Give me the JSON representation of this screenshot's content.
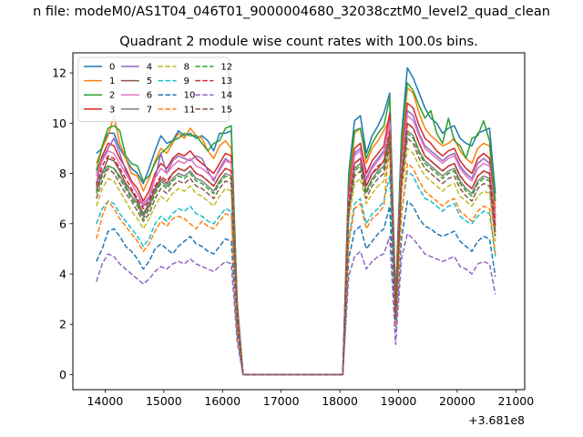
{
  "chart_data": {
    "type": "line",
    "suptitle": "n file: modeM0/AS1T04_046T01_9000004680_32038cztM0_level2_quad_clean",
    "title": "Quadrant 2 module wise count rates with 100.0s bins.",
    "xlabel": "",
    "ylabel": "",
    "x_offset_label": "+3.681e8",
    "xlim": [
      13450,
      21150
    ],
    "ylim": [
      -0.6,
      12.8
    ],
    "xticks": [
      14000,
      15000,
      16000,
      17000,
      18000,
      19000,
      20000,
      21000
    ],
    "yticks": [
      0,
      2,
      4,
      6,
      8,
      10,
      12
    ],
    "grid": false,
    "legend": {
      "position": "top-left",
      "columns": 4
    },
    "x": [
      13850,
      13950,
      14050,
      14150,
      14250,
      14350,
      14450,
      14550,
      14650,
      14750,
      14850,
      14950,
      15050,
      15150,
      15250,
      15350,
      15450,
      15550,
      15650,
      15750,
      15850,
      15950,
      16050,
      16150,
      16250,
      16350,
      16450,
      16550,
      16650,
      16750,
      16850,
      16950,
      17050,
      17150,
      17250,
      17350,
      17450,
      17550,
      17650,
      17750,
      17850,
      17950,
      18050,
      18150,
      18250,
      18350,
      18450,
      18550,
      18650,
      18750,
      18850,
      18950,
      19050,
      19150,
      19250,
      19350,
      19450,
      19550,
      19650,
      19750,
      19850,
      19950,
      20050,
      20150,
      20250,
      20350,
      20450,
      20550,
      20650
    ],
    "series": [
      {
        "name": "0",
        "color": "#1f77b4",
        "dash": false,
        "values": [
          8.8,
          9.0,
          9.6,
          9.6,
          9.0,
          8.6,
          8.2,
          8.0,
          7.6,
          8.2,
          8.9,
          9.5,
          9.2,
          9.3,
          9.7,
          9.5,
          9.6,
          9.4,
          9.5,
          9.3,
          8.9,
          9.6,
          9.6,
          9.7,
          2.9,
          0,
          0,
          0,
          0,
          0,
          0,
          0,
          0,
          0,
          0,
          0,
          0,
          0,
          0,
          0,
          0,
          0,
          0,
          8.0,
          10.1,
          10.3,
          8.8,
          9.5,
          9.9,
          10.4,
          11.2,
          3.0,
          9.5,
          12.2,
          11.8,
          11.2,
          10.6,
          10.2,
          10.0,
          9.6,
          9.8,
          9.9,
          9.4,
          9.2,
          9.1,
          9.6,
          9.7,
          9.8,
          7.2
        ]
      },
      {
        "name": "1",
        "color": "#ff7f0e",
        "dash": false,
        "values": [
          8.4,
          9.0,
          9.5,
          10.3,
          9.2,
          8.6,
          8.0,
          7.9,
          7.3,
          7.8,
          8.5,
          9.0,
          8.8,
          9.2,
          9.6,
          9.4,
          9.8,
          9.5,
          9.4,
          8.9,
          8.6,
          9.1,
          9.3,
          9.0,
          2.7,
          0,
          0,
          0,
          0,
          0,
          0,
          0,
          0,
          0,
          0,
          0,
          0,
          0,
          0,
          0,
          0,
          0,
          0,
          7.4,
          9.6,
          9.8,
          8.4,
          9.0,
          9.3,
          9.7,
          10.2,
          2.7,
          9.0,
          11.4,
          11.2,
          10.4,
          9.8,
          9.5,
          9.3,
          9.1,
          9.2,
          9.4,
          8.9,
          8.6,
          8.4,
          9.0,
          9.2,
          9.1,
          6.6
        ]
      },
      {
        "name": "2",
        "color": "#2ca02c",
        "dash": false,
        "values": [
          8.1,
          9.1,
          9.8,
          9.9,
          9.7,
          8.7,
          8.4,
          8.3,
          7.7,
          7.9,
          8.4,
          8.8,
          9.0,
          9.3,
          9.4,
          9.6,
          9.5,
          9.5,
          9.2,
          8.9,
          9.2,
          9.3,
          9.8,
          9.9,
          2.8,
          0,
          0,
          0,
          0,
          0,
          0,
          0,
          0,
          0,
          0,
          0,
          0,
          0,
          0,
          0,
          0,
          0,
          0,
          7.8,
          9.7,
          9.8,
          8.6,
          9.2,
          9.6,
          9.9,
          11.0,
          2.9,
          9.3,
          11.6,
          11.3,
          10.7,
          10.2,
          10.5,
          9.6,
          9.2,
          10.2,
          9.3,
          9.1,
          8.6,
          9.4,
          9.5,
          10.1,
          9.3,
          6.9
        ]
      },
      {
        "name": "3",
        "color": "#d62728",
        "dash": false,
        "values": [
          7.9,
          8.7,
          9.2,
          9.1,
          8.6,
          8.2,
          7.7,
          7.4,
          6.9,
          7.3,
          8.0,
          8.4,
          8.2,
          8.6,
          8.8,
          8.7,
          8.9,
          8.6,
          8.4,
          8.2,
          8.0,
          8.4,
          8.8,
          8.7,
          2.6,
          0,
          0,
          0,
          0,
          0,
          0,
          0,
          0,
          0,
          0,
          0,
          0,
          0,
          0,
          0,
          0,
          0,
          0,
          7.2,
          9.0,
          9.2,
          8.0,
          8.5,
          8.8,
          9.1,
          10.4,
          2.6,
          8.6,
          10.8,
          10.6,
          9.9,
          9.4,
          9.2,
          8.9,
          8.7,
          8.9,
          9.0,
          8.5,
          8.2,
          8.0,
          8.6,
          8.8,
          8.6,
          6.3
        ]
      },
      {
        "name": "4",
        "color": "#9467bd",
        "dash": false,
        "values": [
          7.6,
          8.6,
          9.0,
          9.4,
          8.8,
          8.1,
          7.6,
          7.2,
          6.7,
          7.0,
          7.8,
          8.8,
          8.0,
          8.5,
          8.7,
          8.6,
          8.5,
          8.7,
          8.6,
          8.1,
          7.7,
          8.2,
          8.6,
          8.4,
          2.5,
          0,
          0,
          0,
          0,
          0,
          0,
          0,
          0,
          0,
          0,
          0,
          0,
          0,
          0,
          0,
          0,
          0,
          0,
          7.0,
          8.8,
          9.0,
          7.8,
          8.3,
          8.6,
          8.9,
          10.1,
          2.5,
          8.4,
          10.5,
          10.3,
          9.6,
          9.1,
          8.9,
          8.7,
          8.5,
          8.7,
          8.8,
          8.3,
          8.0,
          7.8,
          8.4,
          8.6,
          8.4,
          6.2
        ]
      },
      {
        "name": "5",
        "color": "#8c564b",
        "dash": false,
        "values": [
          7.3,
          8.0,
          8.6,
          8.5,
          8.1,
          7.6,
          7.3,
          6.9,
          6.4,
          6.8,
          7.4,
          7.8,
          7.6,
          8.0,
          8.2,
          8.1,
          8.3,
          8.0,
          7.9,
          7.7,
          7.5,
          7.9,
          8.2,
          8.1,
          2.4,
          0,
          0,
          0,
          0,
          0,
          0,
          0,
          0,
          0,
          0,
          0,
          0,
          0,
          0,
          0,
          0,
          0,
          0,
          6.7,
          8.4,
          8.6,
          7.5,
          8.0,
          8.2,
          8.5,
          9.6,
          2.4,
          8.0,
          10.0,
          9.8,
          9.2,
          8.7,
          8.5,
          8.3,
          8.1,
          8.3,
          8.4,
          7.9,
          7.6,
          7.4,
          7.9,
          8.1,
          8.0,
          5.9
        ]
      },
      {
        "name": "6",
        "color": "#e377c2",
        "dash": false,
        "values": [
          7.9,
          8.5,
          8.9,
          8.8,
          8.4,
          8.0,
          7.6,
          7.2,
          6.8,
          7.1,
          7.8,
          8.2,
          8.0,
          8.3,
          8.5,
          8.4,
          8.6,
          8.3,
          8.2,
          8.0,
          7.8,
          8.1,
          8.5,
          8.4,
          2.5,
          0,
          0,
          0,
          0,
          0,
          0,
          0,
          0,
          0,
          0,
          0,
          0,
          0,
          0,
          0,
          0,
          0,
          0,
          6.9,
          8.7,
          8.9,
          7.7,
          8.2,
          8.5,
          8.8,
          10.0,
          2.5,
          8.3,
          10.3,
          10.1,
          9.5,
          9.0,
          8.8,
          8.6,
          8.4,
          8.6,
          8.7,
          8.2,
          7.9,
          7.7,
          8.2,
          8.4,
          8.3,
          6.1
        ]
      },
      {
        "name": "7",
        "color": "#7f7f7f",
        "dash": false,
        "values": [
          7.4,
          8.1,
          8.3,
          8.2,
          7.9,
          7.5,
          7.1,
          6.8,
          6.3,
          6.7,
          7.3,
          7.7,
          7.5,
          7.8,
          8.0,
          7.9,
          8.1,
          7.8,
          7.7,
          7.5,
          7.3,
          7.7,
          8.0,
          7.9,
          2.3,
          0,
          0,
          0,
          0,
          0,
          0,
          0,
          0,
          0,
          0,
          0,
          0,
          0,
          0,
          0,
          0,
          0,
          0,
          6.6,
          8.2,
          8.4,
          7.3,
          7.8,
          8.1,
          8.3,
          9.4,
          2.3,
          7.8,
          9.7,
          9.5,
          8.9,
          8.5,
          8.3,
          8.1,
          7.9,
          8.1,
          8.2,
          7.7,
          7.4,
          7.2,
          7.7,
          7.9,
          7.8,
          5.7
        ]
      },
      {
        "name": "8",
        "color": "#bcbd22",
        "dash": true,
        "values": [
          6.7,
          7.4,
          7.8,
          7.7,
          7.3,
          6.9,
          6.5,
          6.2,
          5.8,
          6.2,
          6.7,
          7.1,
          6.9,
          7.2,
          7.4,
          7.3,
          7.5,
          7.2,
          7.1,
          6.9,
          6.7,
          7.1,
          7.4,
          7.3,
          2.2,
          0,
          0,
          0,
          0,
          0,
          0,
          0,
          0,
          0,
          0,
          0,
          0,
          0,
          0,
          0,
          0,
          0,
          0,
          6.1,
          7.6,
          7.8,
          6.8,
          7.2,
          7.5,
          7.7,
          8.8,
          2.2,
          7.2,
          9.0,
          8.8,
          8.3,
          7.9,
          7.7,
          7.5,
          7.3,
          7.5,
          7.6,
          7.1,
          6.9,
          6.7,
          7.1,
          7.3,
          7.2,
          5.3
        ]
      },
      {
        "name": "9",
        "color": "#17becf",
        "dash": true,
        "values": [
          6.0,
          6.6,
          6.9,
          6.8,
          6.4,
          6.1,
          5.8,
          5.5,
          5.1,
          5.4,
          6.0,
          6.3,
          6.1,
          6.4,
          6.6,
          6.5,
          6.7,
          6.4,
          6.3,
          6.1,
          6.0,
          6.3,
          6.6,
          6.5,
          1.9,
          0,
          0,
          0,
          0,
          0,
          0,
          0,
          0,
          0,
          0,
          0,
          0,
          0,
          0,
          0,
          0,
          0,
          0,
          5.4,
          6.8,
          7.0,
          6.0,
          6.4,
          6.6,
          6.9,
          7.9,
          2.0,
          6.4,
          8.1,
          7.9,
          7.4,
          7.0,
          6.9,
          6.7,
          6.5,
          6.7,
          6.8,
          6.3,
          6.1,
          6.0,
          6.3,
          6.5,
          6.4,
          4.7
        ]
      },
      {
        "name": "10",
        "color": "#1f77b4",
        "dash": true,
        "values": [
          4.5,
          5.0,
          5.7,
          5.8,
          5.5,
          5.1,
          4.9,
          4.6,
          4.2,
          4.5,
          5.0,
          5.2,
          5.0,
          4.8,
          5.1,
          5.3,
          5.5,
          5.2,
          5.1,
          4.9,
          4.8,
          5.1,
          5.4,
          5.3,
          1.6,
          0,
          0,
          0,
          0,
          0,
          0,
          0,
          0,
          0,
          0,
          0,
          0,
          0,
          0,
          0,
          0,
          0,
          0,
          4.6,
          5.7,
          5.9,
          5.0,
          5.3,
          5.6,
          5.8,
          6.7,
          1.7,
          5.4,
          6.9,
          6.7,
          6.2,
          5.9,
          5.8,
          5.6,
          5.5,
          5.6,
          5.7,
          5.3,
          5.1,
          4.9,
          5.3,
          5.5,
          5.4,
          3.9
        ]
      },
      {
        "name": "11",
        "color": "#ff7f0e",
        "dash": true,
        "values": [
          5.4,
          6.3,
          6.9,
          6.6,
          6.2,
          5.9,
          5.6,
          5.3,
          4.9,
          5.2,
          5.7,
          6.1,
          5.9,
          6.2,
          6.3,
          6.2,
          6.0,
          5.8,
          6.1,
          5.9,
          5.8,
          6.1,
          6.4,
          6.3,
          1.9,
          0,
          0,
          0,
          0,
          0,
          0,
          0,
          0,
          0,
          0,
          0,
          0,
          0,
          0,
          0,
          0,
          0,
          0,
          5.2,
          6.6,
          6.8,
          5.8,
          6.2,
          6.4,
          6.7,
          9.3,
          1.9,
          6.3,
          8.4,
          8.2,
          7.7,
          7.3,
          7.1,
          6.9,
          6.7,
          6.9,
          7.0,
          6.5,
          6.3,
          6.1,
          6.5,
          6.7,
          6.6,
          4.8
        ]
      },
      {
        "name": "12",
        "color": "#2ca02c",
        "dash": true,
        "values": [
          7.2,
          7.9,
          8.3,
          8.2,
          7.8,
          7.4,
          7.0,
          6.7,
          6.2,
          6.6,
          7.2,
          7.6,
          7.4,
          7.7,
          7.9,
          7.8,
          8.0,
          7.7,
          7.6,
          7.4,
          7.2,
          7.6,
          7.9,
          7.8,
          2.3,
          0,
          0,
          0,
          0,
          0,
          0,
          0,
          0,
          0,
          0,
          0,
          0,
          0,
          0,
          0,
          0,
          0,
          0,
          6.5,
          8.1,
          8.3,
          7.2,
          7.7,
          8.0,
          8.2,
          9.3,
          2.3,
          7.7,
          9.6,
          9.4,
          8.8,
          8.4,
          8.2,
          8.0,
          7.8,
          8.0,
          8.1,
          7.6,
          7.3,
          7.1,
          7.6,
          7.8,
          7.7,
          5.6
        ]
      },
      {
        "name": "13",
        "color": "#d62728",
        "dash": true,
        "values": [
          7.5,
          8.3,
          8.7,
          8.6,
          8.2,
          7.8,
          7.4,
          7.0,
          6.6,
          6.9,
          7.5,
          7.9,
          7.7,
          8.0,
          8.2,
          8.1,
          8.3,
          8.0,
          7.9,
          7.7,
          7.5,
          7.9,
          8.2,
          8.1,
          2.4,
          0,
          0,
          0,
          0,
          0,
          0,
          0,
          0,
          0,
          0,
          0,
          0,
          0,
          0,
          0,
          0,
          0,
          0,
          6.8,
          8.4,
          8.6,
          7.5,
          8.0,
          8.3,
          8.5,
          9.7,
          2.4,
          8.0,
          10.0,
          9.8,
          9.2,
          8.7,
          8.5,
          8.3,
          8.1,
          8.3,
          8.4,
          7.9,
          7.6,
          7.4,
          7.9,
          8.1,
          8.0,
          5.9
        ]
      },
      {
        "name": "14",
        "color": "#9467bd",
        "dash": true,
        "values": [
          3.7,
          4.4,
          4.8,
          4.7,
          4.4,
          4.2,
          4.0,
          3.8,
          3.6,
          3.8,
          4.1,
          4.3,
          4.2,
          4.4,
          4.5,
          4.4,
          4.6,
          4.4,
          4.3,
          4.2,
          4.1,
          4.3,
          4.5,
          4.4,
          1.3,
          0,
          0,
          0,
          0,
          0,
          0,
          0,
          0,
          0,
          0,
          0,
          0,
          0,
          0,
          0,
          0,
          0,
          0,
          3.9,
          4.7,
          4.9,
          4.2,
          4.5,
          4.7,
          4.8,
          5.5,
          1.2,
          4.6,
          5.6,
          5.4,
          5.1,
          4.8,
          4.7,
          4.6,
          4.5,
          4.6,
          4.7,
          4.3,
          4.2,
          4.0,
          4.4,
          4.5,
          4.4,
          3.2
        ]
      },
      {
        "name": "15",
        "color": "#8c564b",
        "dash": true,
        "values": [
          7.0,
          7.7,
          8.2,
          8.0,
          7.6,
          7.2,
          6.9,
          6.5,
          6.1,
          6.4,
          7.0,
          7.4,
          7.2,
          7.5,
          7.7,
          7.6,
          7.8,
          7.5,
          7.4,
          7.2,
          7.0,
          7.4,
          7.7,
          7.6,
          2.2,
          0,
          0,
          0,
          0,
          0,
          0,
          0,
          0,
          0,
          0,
          0,
          0,
          0,
          0,
          0,
          0,
          0,
          0,
          6.4,
          7.9,
          8.1,
          7.0,
          7.5,
          7.8,
          8.0,
          9.1,
          2.2,
          7.5,
          9.4,
          9.2,
          8.6,
          8.2,
          8.0,
          7.8,
          7.6,
          7.8,
          7.9,
          7.4,
          7.1,
          6.9,
          7.4,
          7.6,
          7.5,
          5.5
        ]
      }
    ]
  }
}
